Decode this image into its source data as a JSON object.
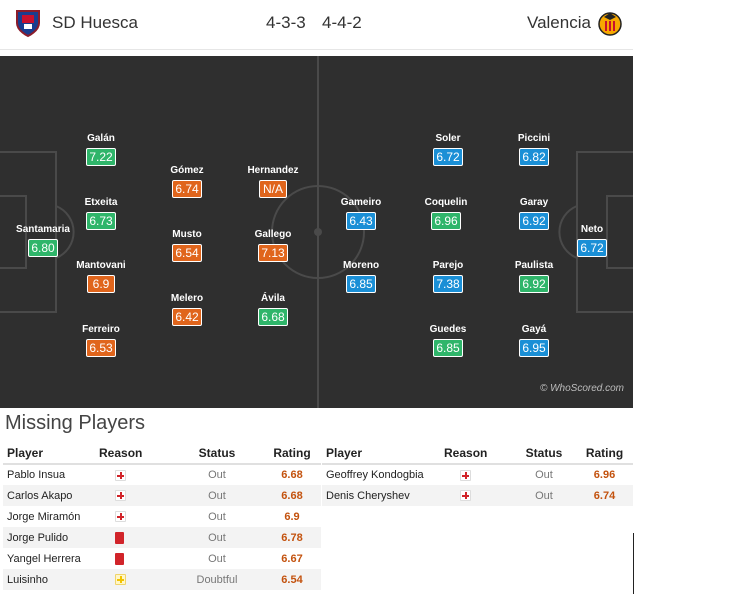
{
  "header": {
    "home_team": "SD Huesca",
    "away_team": "Valencia",
    "home_formation": "4-3-3",
    "away_formation": "4-4-2",
    "home_crest_icon": "huesca-crest-icon",
    "away_crest_icon": "valencia-crest-icon"
  },
  "colors": {
    "rating_orange": "#e0651c",
    "rating_green": "#2fb56a",
    "rating_blue": "#1a8fd6",
    "pitch": "#2f2f2f"
  },
  "home_players": [
    {
      "name": "Galán",
      "rating": "7.22",
      "color": "#2fb56a"
    },
    {
      "name": "Etxeita",
      "rating": "6.73",
      "color": "#2fb56a"
    },
    {
      "name": "Santamaria",
      "rating": "6.80",
      "color": "#2fb56a"
    },
    {
      "name": "Mantovani",
      "rating": "6.9",
      "color": "#e0651c"
    },
    {
      "name": "Ferreiro",
      "rating": "6.53",
      "color": "#e0651c"
    },
    {
      "name": "Gómez",
      "rating": "6.74",
      "color": "#e0651c"
    },
    {
      "name": "Musto",
      "rating": "6.54",
      "color": "#e0651c"
    },
    {
      "name": "Melero",
      "rating": "6.42",
      "color": "#e0651c"
    },
    {
      "name": "Hernandez",
      "rating": "N/A",
      "color": "#e0651c"
    },
    {
      "name": "Gallego",
      "rating": "7.13",
      "color": "#e0651c"
    },
    {
      "name": "Ávila",
      "rating": "6.68",
      "color": "#2fb56a"
    }
  ],
  "away_players": [
    {
      "name": "Gameiro",
      "rating": "6.43",
      "color": "#1a8fd6"
    },
    {
      "name": "Moreno",
      "rating": "6.85",
      "color": "#1a8fd6"
    },
    {
      "name": "Soler",
      "rating": "6.72",
      "color": "#1a8fd6"
    },
    {
      "name": "Coquelin",
      "rating": "6.96",
      "color": "#2fb56a"
    },
    {
      "name": "Parejo",
      "rating": "7.38",
      "color": "#1a8fd6"
    },
    {
      "name": "Guedes",
      "rating": "6.85",
      "color": "#2fb56a"
    },
    {
      "name": "Piccini",
      "rating": "6.82",
      "color": "#1a8fd6"
    },
    {
      "name": "Garay",
      "rating": "6.92",
      "color": "#1a8fd6"
    },
    {
      "name": "Paulista",
      "rating": "6.92",
      "color": "#2fb56a"
    },
    {
      "name": "Gayá",
      "rating": "6.95",
      "color": "#1a8fd6"
    },
    {
      "name": "Neto",
      "rating": "6.72",
      "color": "#1a8fd6"
    }
  ],
  "watermark": "© WhoScored.com",
  "missing": {
    "title": "Missing Players",
    "columns": [
      "Player",
      "Reason",
      "Status",
      "Rating"
    ],
    "home": [
      {
        "player": "Pablo Insua",
        "reason": "injury",
        "status": "Out",
        "rating": "6.68"
      },
      {
        "player": "Carlos Akapo",
        "reason": "injury",
        "status": "Out",
        "rating": "6.68"
      },
      {
        "player": "Jorge Miramón",
        "reason": "injury",
        "status": "Out",
        "rating": "6.9"
      },
      {
        "player": "Jorge Pulido",
        "reason": "red-card",
        "status": "Out",
        "rating": "6.78"
      },
      {
        "player": "Yangel Herrera",
        "reason": "red-card",
        "status": "Out",
        "rating": "6.67"
      },
      {
        "player": "Luisinho",
        "reason": "doubtful",
        "status": "Doubtful",
        "rating": "6.54"
      }
    ],
    "away": [
      {
        "player": "Geoffrey Kondogbia",
        "reason": "injury",
        "status": "Out",
        "rating": "6.96"
      },
      {
        "player": "Denis Cheryshev",
        "reason": "injury",
        "status": "Out",
        "rating": "6.74"
      }
    ]
  }
}
